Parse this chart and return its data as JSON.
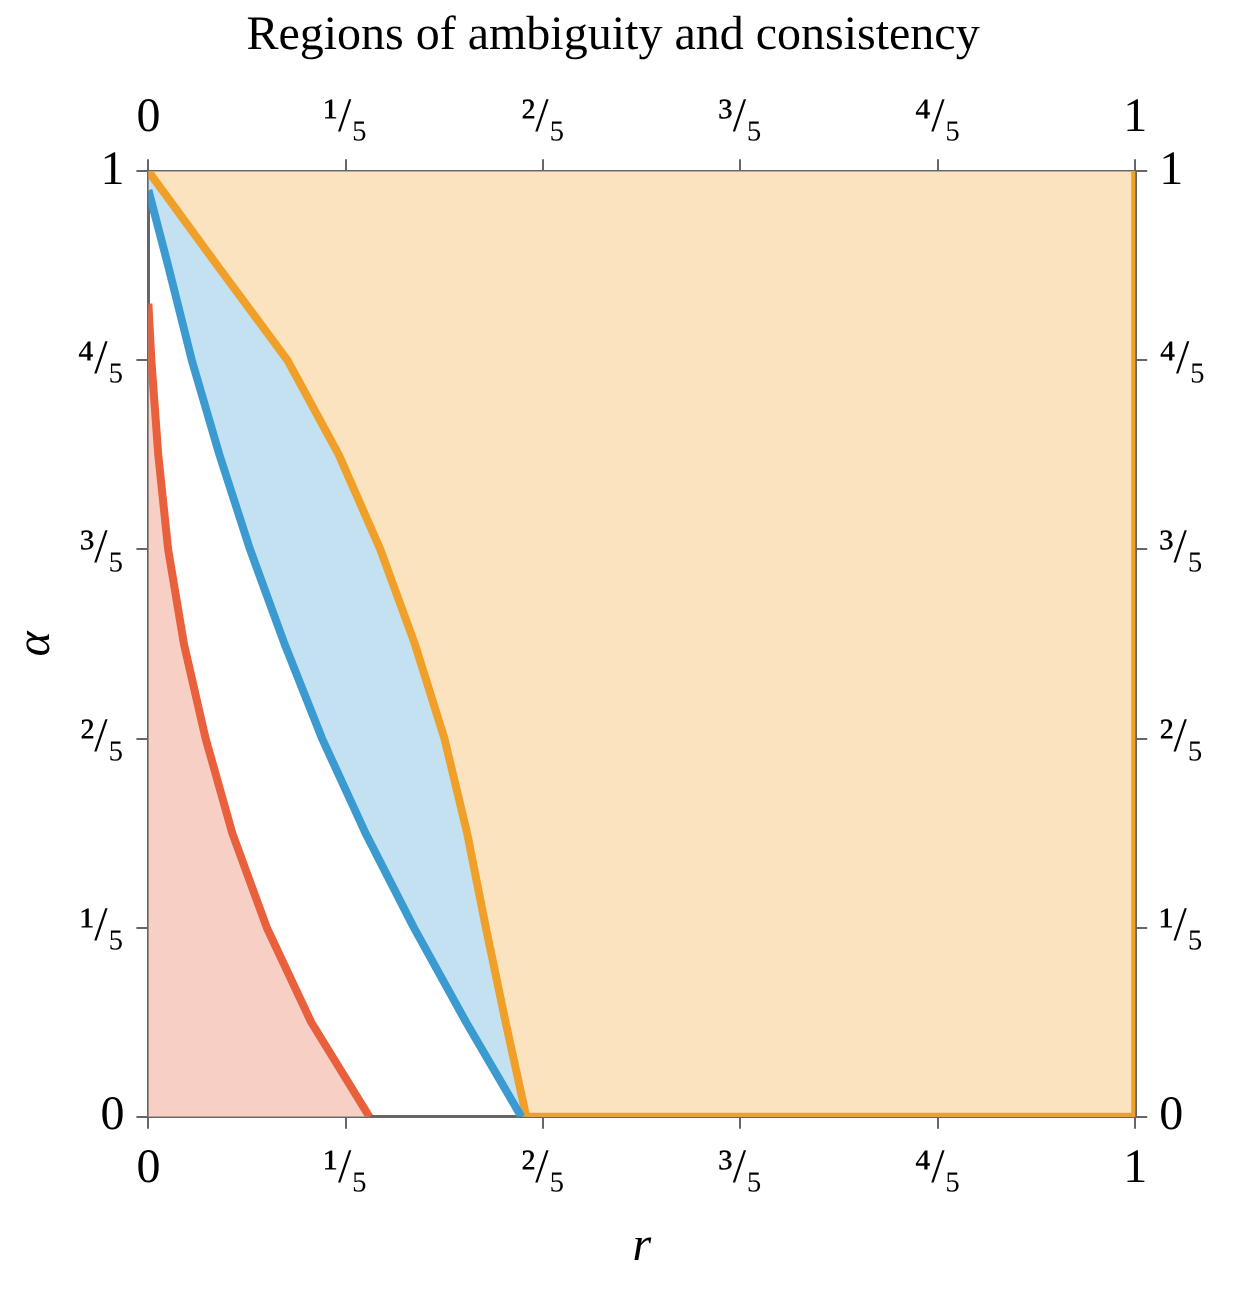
{
  "chart_data": {
    "type": "area",
    "title": "Regions of ambiguity and consistency",
    "xlabel": "r",
    "ylabel": "α",
    "series": [
      {
        "color": "#e8603c",
        "x": [
          0,
          0.003,
          0.01,
          0.02,
          0.036,
          0.058,
          0.085,
          0.12,
          0.165,
          0.224
        ],
        "values": [
          0.86,
          0.8,
          0.7,
          0.6,
          0.5,
          0.4,
          0.3,
          0.2,
          0.1,
          0
        ]
      },
      {
        "type": "line",
        "color": "#3b9bd1",
        "x": [
          0,
          0.02,
          0.044,
          0.072,
          0.103,
          0.138,
          0.176,
          0.22,
          0.269,
          0.322,
          0.378
        ],
        "values": [
          0.98,
          0.9,
          0.8,
          0.7,
          0.6,
          0.5,
          0.4,
          0.3,
          0.2,
          0.1,
          0
        ],
        "lower": [
          0.98,
          0.9,
          0.8,
          0.7,
          0.6,
          0.5,
          0.4,
          0.3,
          0.2,
          0.1,
          0
        ],
        "upper": [
          1,
          0.971,
          0.937,
          0.897,
          0.853,
          0.804,
          0.733,
          0.648,
          0.503,
          0.304,
          0.024
        ]
      },
      {
        "color": "#f0a028",
        "x": [
          0,
          0.07,
          0.141,
          0.193,
          0.235,
          0.27,
          0.3,
          0.323,
          0.342,
          0.362,
          0.383,
          1,
          1
        ],
        "values": [
          1,
          0.9,
          0.8,
          0.7,
          0.6,
          0.5,
          0.4,
          0.3,
          0.2,
          0.1,
          0,
          0,
          1
        ]
      }
    ],
    "xlim": [
      0,
      1
    ],
    "xticks": [
      0,
      {
        "value": 0.2,
        "label": "¹/₅"
      },
      {
        "value": 0.4,
        "label": "²/₅"
      },
      {
        "value": 0.6,
        "label": "³/₅"
      },
      {
        "value": 0.8,
        "label": "⁴/₅"
      },
      1
    ],
    "x2lim": [
      0,
      1
    ],
    "x2ticks": [
      0,
      {
        "value": 0.2,
        "label": "¹/₅"
      },
      {
        "value": 0.4,
        "label": "²/₅"
      },
      {
        "value": 0.6,
        "label": "³/₅"
      },
      {
        "value": 0.8,
        "label": "⁴/₅"
      },
      1
    ],
    "ylim": [
      0,
      1
    ],
    "yticks": [
      0,
      {
        "value": 0.2,
        "label": "¹/₅"
      },
      {
        "value": 0.4,
        "label": "²/₅"
      },
      {
        "value": 0.6,
        "label": "³/₅"
      },
      {
        "value": 0.8,
        "label": "⁴/₅"
      },
      1
    ],
    "y2lim": [
      0,
      1
    ],
    "y2ticks": [
      0,
      {
        "value": 0.2,
        "label": "¹/₅"
      },
      {
        "value": 0.4,
        "label": "²/₅"
      },
      {
        "value": 0.6,
        "label": "³/₅"
      },
      {
        "value": 0.8,
        "label": "⁴/₅"
      },
      1
    ],
    "grid": false,
    "legend": false,
    "marker": "none",
    "line_style": "solid"
  }
}
